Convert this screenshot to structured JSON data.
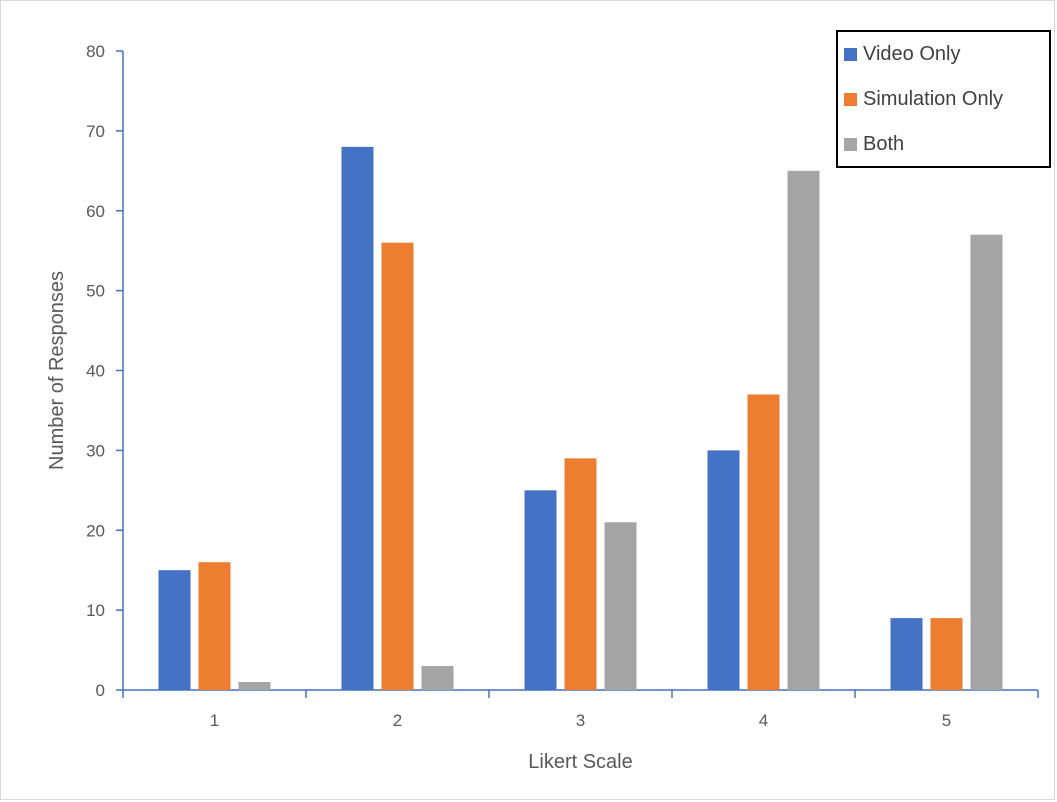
{
  "chart_data": {
    "type": "bar",
    "categories": [
      "1",
      "2",
      "3",
      "4",
      "5"
    ],
    "series": [
      {
        "name": "Video Only",
        "values": [
          15,
          68,
          25,
          30,
          9
        ],
        "color": "#4472c4"
      },
      {
        "name": "Simulation Only",
        "values": [
          16,
          56,
          29,
          37,
          9
        ],
        "color": "#ed7d31"
      },
      {
        "name": "Both",
        "values": [
          1,
          3,
          21,
          65,
          57
        ],
        "color": "#a5a5a5"
      }
    ],
    "xlabel": "Likert Scale",
    "ylabel": "Number of Responses",
    "ylim": [
      0,
      80
    ],
    "yticks": [
      0,
      10,
      20,
      30,
      40,
      50,
      60,
      70,
      80
    ],
    "grid": false,
    "legend_position": "top-right",
    "axis_color": "#4472c4"
  }
}
